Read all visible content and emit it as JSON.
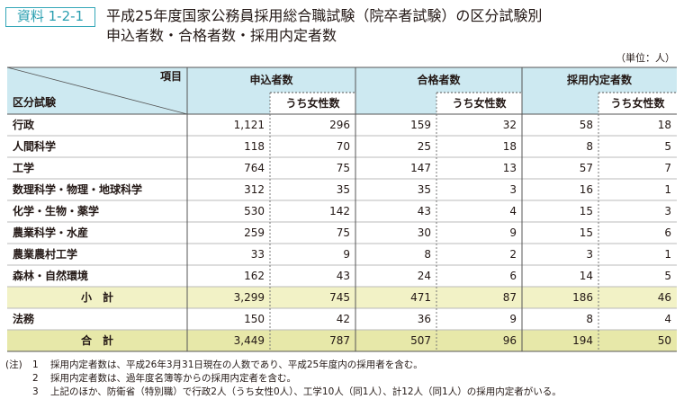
{
  "badge": "資料 1-2-1",
  "title": [
    "平成25年度国家公務員採用総合職試験（院卒者試験）の区分試験別",
    "申込者数・合格者数・採用内定者数"
  ],
  "unit": "（単位：人）",
  "table": {
    "corner": {
      "top": "項目",
      "bottom": "区分試験"
    },
    "groups": [
      "申込者数",
      "合格者数",
      "採用内定者数"
    ],
    "subheaders": [
      "うち女性数",
      "うち女性数",
      "うち女性数"
    ],
    "rows": [
      [
        "行政",
        "1,121",
        "296",
        "159",
        "32",
        "58",
        "18"
      ],
      [
        "人間科学",
        "118",
        "70",
        "25",
        "18",
        "8",
        "5"
      ],
      [
        "工学",
        "764",
        "75",
        "147",
        "13",
        "57",
        "7"
      ],
      [
        "数理科学・物理・地球科学",
        "312",
        "35",
        "35",
        "3",
        "16",
        "1"
      ],
      [
        "化学・生物・薬学",
        "530",
        "142",
        "43",
        "4",
        "15",
        "3"
      ],
      [
        "農業科学・水産",
        "259",
        "75",
        "30",
        "9",
        "15",
        "6"
      ],
      [
        "農業農村工学",
        "33",
        "9",
        "8",
        "2",
        "3",
        "1"
      ],
      [
        "森林・自然環境",
        "162",
        "43",
        "24",
        "6",
        "14",
        "5"
      ],
      [
        "小　計",
        "3,299",
        "745",
        "471",
        "87",
        "186",
        "46"
      ],
      [
        "法務",
        "150",
        "42",
        "36",
        "9",
        "8",
        "4"
      ],
      [
        "合　計",
        "3,449",
        "787",
        "507",
        "96",
        "194",
        "50"
      ]
    ]
  },
  "notes": {
    "prefix": "(注)",
    "items": [
      {
        "num": "1",
        "text": "採用内定者数は、平成26年3月31日現在の人数であり、平成25年度内の採用者を含む。"
      },
      {
        "num": "2",
        "text": "採用内定者数は、過年度名簿等からの採用内定者を含む。"
      },
      {
        "num": "3",
        "text": "上記のほか、防衛省（特別職）で行政2人（うち女性0人）、工学10人（同1人）、計12人（同1人）の採用内定者がいる。"
      }
    ]
  }
}
